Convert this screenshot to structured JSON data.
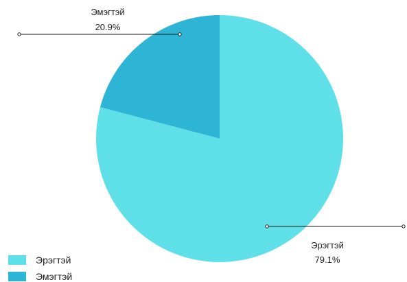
{
  "chart_data": {
    "type": "pie",
    "title": "",
    "slices": [
      {
        "label": "Эрэгтэй",
        "value": 79.1,
        "value_label": "79.1%",
        "color": "#5fe0e8"
      },
      {
        "label": "Эмэгтэй",
        "value": 20.9,
        "value_label": "20.9%",
        "color": "#2eb4d4"
      }
    ],
    "legend": {
      "placement": "bottom-left",
      "items": [
        "Эрэгтэй",
        "Эмэгтэй"
      ]
    }
  }
}
